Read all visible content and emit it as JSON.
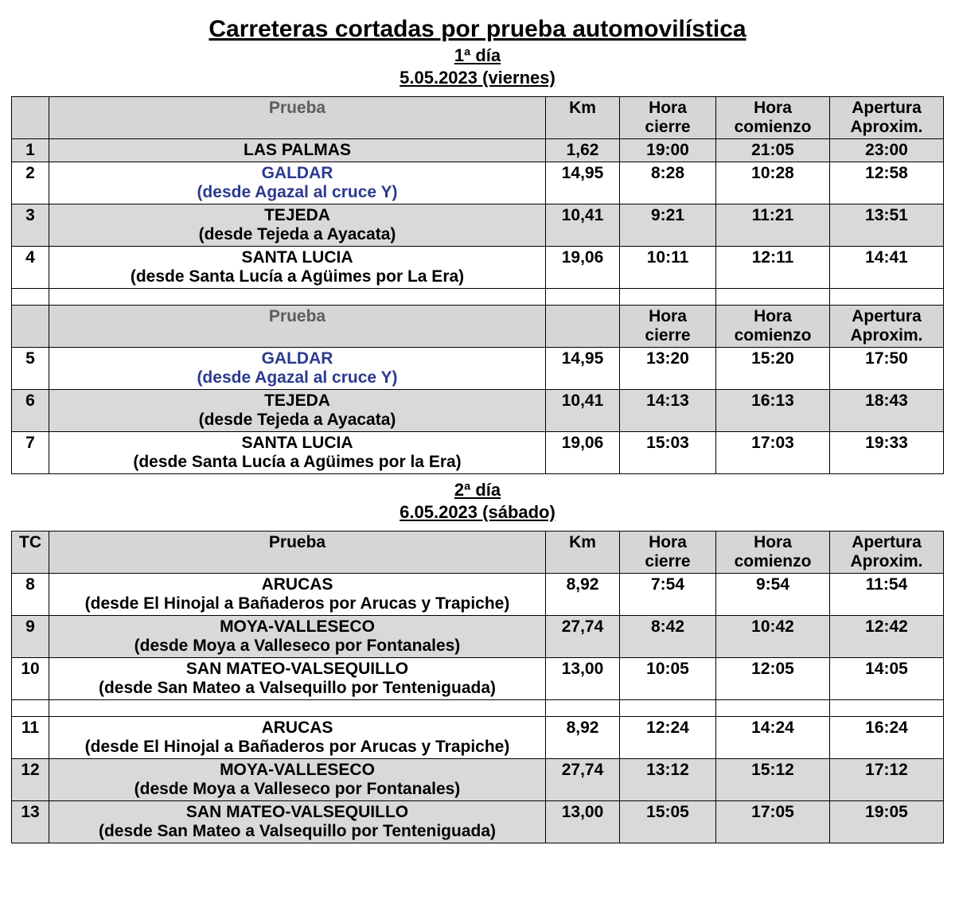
{
  "title": "Carreteras cortadas por prueba automovilística",
  "day1": {
    "label": "1ª día",
    "date": "5.05.2023 (viernes)",
    "headers1": {
      "prueba": "Prueba",
      "km": "Km",
      "cierre": "Hora cierre",
      "comienzo": "Hora comienzo",
      "apertura": "Apertura Aproxim."
    },
    "rows1": [
      {
        "n": "1",
        "main": "LAS PALMAS",
        "sub": "",
        "km": "1,62",
        "cierre": "19:00",
        "comienzo": "21:05",
        "apertura": "23:00",
        "shaded": true,
        "blue": false
      },
      {
        "n": "2",
        "main": "GALDAR",
        "sub": "(desde Agazal al cruce Y)",
        "km": "14,95",
        "cierre": "8:28",
        "comienzo": "10:28",
        "apertura": "12:58",
        "shaded": false,
        "blue": true
      },
      {
        "n": "3",
        "main": "TEJEDA",
        "sub": "(desde Tejeda a Ayacata)",
        "km": "10,41",
        "cierre": "9:21",
        "comienzo": "11:21",
        "apertura": "13:51",
        "shaded": true,
        "blue": false
      },
      {
        "n": "4",
        "main": "SANTA LUCIA",
        "sub": "(desde Santa Lucía a Agüimes por La Era)",
        "km": "19,06",
        "cierre": "10:11",
        "comienzo": "12:11",
        "apertura": "14:41",
        "shaded": false,
        "blue": false
      }
    ],
    "headers2": {
      "prueba": "Prueba",
      "km": "",
      "cierre": "Hora cierre",
      "comienzo": "Hora comienzo",
      "apertura": "Apertura Aproxim."
    },
    "rows2": [
      {
        "n": "5",
        "main": "GALDAR",
        "sub": "(desde Agazal al cruce Y)",
        "km": "14,95",
        "cierre": "13:20",
        "comienzo": "15:20",
        "apertura": "17:50",
        "shaded": false,
        "blue": true
      },
      {
        "n": "6",
        "main": "TEJEDA",
        "sub": "(desde Tejeda a Ayacata)",
        "km": "10,41",
        "cierre": "14:13",
        "comienzo": "16:13",
        "apertura": "18:43",
        "shaded": true,
        "blue": false
      },
      {
        "n": "7",
        "main": "SANTA LUCIA",
        "sub": "(desde Santa Lucía a Agüimes por la Era)",
        "km": "19,06",
        "cierre": "15:03",
        "comienzo": "17:03",
        "apertura": "19:33",
        "shaded": false,
        "blue": false
      }
    ]
  },
  "day2": {
    "label": "2ª día",
    "date": "6.05.2023 (sábado)",
    "headers": {
      "tc": "TC",
      "prueba": "Prueba",
      "km": "Km",
      "cierre": "Hora cierre",
      "comienzo": "Hora comienzo",
      "apertura": "Apertura Aproxim."
    },
    "rows1": [
      {
        "n": "8",
        "main": "ARUCAS",
        "sub": "(desde El Hinojal a Bañaderos por Arucas y Trapiche)",
        "km": "8,92",
        "cierre": "7:54",
        "comienzo": "9:54",
        "apertura": "11:54",
        "shaded": false
      },
      {
        "n": "9",
        "main": "MOYA-VALLESECO",
        "sub": "(desde Moya a Valleseco por Fontanales)",
        "km": "27,74",
        "cierre": "8:42",
        "comienzo": "10:42",
        "apertura": "12:42",
        "shaded": true
      },
      {
        "n": "10",
        "main": "SAN MATEO-VALSEQUILLO",
        "sub": "(desde San Mateo a Valsequillo por Tenteniguada)",
        "km": "13,00",
        "cierre": "10:05",
        "comienzo": "12:05",
        "apertura": "14:05",
        "shaded": false
      }
    ],
    "rows2": [
      {
        "n": "11",
        "main": "ARUCAS",
        "sub": "(desde El Hinojal a Bañaderos por Arucas y Trapiche)",
        "km": "8,92",
        "cierre": "12:24",
        "comienzo": "14:24",
        "apertura": "16:24",
        "shaded": false
      },
      {
        "n": "12",
        "main": "MOYA-VALLESECO",
        "sub": "(desde Moya a Valleseco por Fontanales)",
        "km": "27,74",
        "cierre": "13:12",
        "comienzo": "15:12",
        "apertura": "17:12",
        "shaded": true
      },
      {
        "n": "13",
        "main": "SAN MATEO-VALSEQUILLO",
        "sub": "(desde San Mateo a Valsequillo por Tenteniguada)",
        "km": "13,00",
        "cierre": "15:05",
        "comienzo": "17:05",
        "apertura": "19:05",
        "shaded": true
      }
    ]
  },
  "style": {
    "header_bg": "#d6d6d6",
    "shaded_bg": "#d9d9d9",
    "link_blue": "#2b3a8f",
    "border": "#000000",
    "title_fontsize": 30,
    "subtitle_fontsize": 22,
    "table_fontsize": 21
  }
}
